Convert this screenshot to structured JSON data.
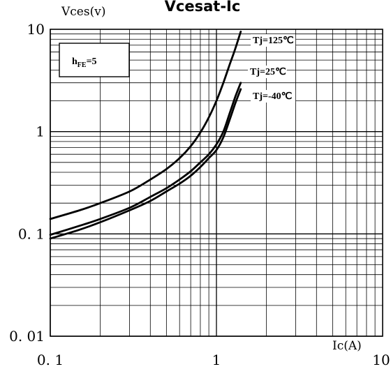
{
  "chart_data": {
    "type": "line",
    "title": "Vcesat-Ic",
    "xlabel": "Ic(A)",
    "ylabel": "Vces(v)",
    "xscale": "log",
    "yscale": "log",
    "xlim": [
      0.1,
      10
    ],
    "ylim": [
      0.01,
      10
    ],
    "grid": true,
    "x_ticks": [
      {
        "value": 0.1,
        "label": "0. 1"
      },
      {
        "value": 1,
        "label": "1"
      },
      {
        "value": 10,
        "label": "10"
      }
    ],
    "y_ticks": [
      {
        "value": 10,
        "label": "10"
      },
      {
        "value": 1,
        "label": "1"
      },
      {
        "value": 0.1,
        "label": "0. 1"
      },
      {
        "value": 0.01,
        "label": "0. 01"
      }
    ],
    "annotation": {
      "main": "h",
      "sub": "FE",
      "tail": "=5"
    },
    "series": [
      {
        "name": "Tj=125℃",
        "x": [
          0.1,
          0.15,
          0.2,
          0.3,
          0.4,
          0.5,
          0.6,
          0.7,
          0.8,
          0.9,
          1.0,
          1.1,
          1.2,
          1.3,
          1.4
        ],
        "y": [
          0.14,
          0.17,
          0.2,
          0.26,
          0.34,
          0.43,
          0.55,
          0.72,
          0.98,
          1.38,
          2.0,
          3.0,
          4.5,
          6.5,
          9.5
        ]
      },
      {
        "name": "Tj=25℃",
        "x": [
          0.1,
          0.15,
          0.2,
          0.3,
          0.4,
          0.5,
          0.6,
          0.7,
          0.8,
          0.9,
          1.0,
          1.1,
          1.2,
          1.3,
          1.4
        ],
        "y": [
          0.098,
          0.12,
          0.14,
          0.18,
          0.23,
          0.28,
          0.34,
          0.41,
          0.5,
          0.6,
          0.75,
          1.0,
          1.5,
          2.2,
          3.0
        ]
      },
      {
        "name": "Tj=-40℃",
        "x": [
          0.1,
          0.15,
          0.2,
          0.3,
          0.4,
          0.5,
          0.6,
          0.7,
          0.8,
          0.9,
          1.0,
          1.1,
          1.2,
          1.3,
          1.4
        ],
        "y": [
          0.09,
          0.11,
          0.13,
          0.17,
          0.21,
          0.26,
          0.31,
          0.37,
          0.45,
          0.55,
          0.66,
          0.88,
          1.3,
          1.9,
          2.6
        ]
      }
    ],
    "series_label_text": [
      "Tj=125℃",
      "Tj=25℃",
      "Tj=-40℃"
    ],
    "colors": {
      "line": "#000000",
      "grid": "#000000",
      "background": "#ffffff"
    }
  }
}
